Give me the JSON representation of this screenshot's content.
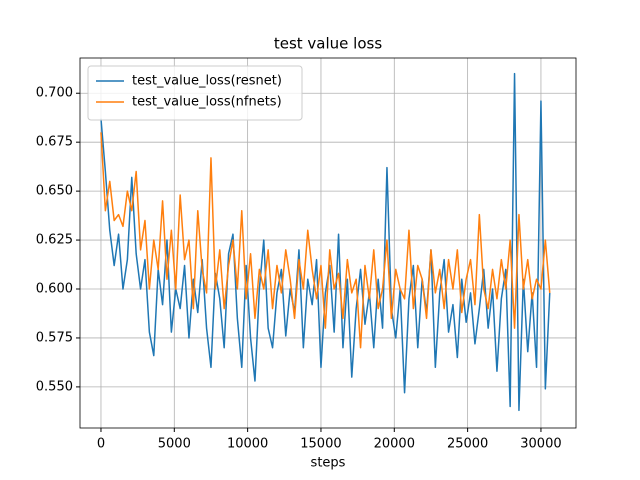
{
  "chart_data": {
    "type": "line",
    "title": "test value loss",
    "x_label": "steps",
    "x": [
      0,
      300,
      600,
      900,
      1200,
      1500,
      1800,
      2100,
      2400,
      2700,
      3000,
      3300,
      3600,
      3900,
      4200,
      4500,
      4800,
      5100,
      5400,
      5700,
      6000,
      6300,
      6600,
      6900,
      7200,
      7500,
      7800,
      8100,
      8400,
      8700,
      9000,
      9300,
      9600,
      9900,
      10200,
      10500,
      10800,
      11100,
      11400,
      11700,
      12000,
      12300,
      12600,
      12900,
      13200,
      13500,
      13800,
      14100,
      14400,
      14700,
      15000,
      15300,
      15600,
      15900,
      16200,
      16500,
      16800,
      17100,
      17400,
      17700,
      18000,
      18300,
      18600,
      18900,
      19200,
      19500,
      19800,
      20100,
      20400,
      20700,
      21000,
      21300,
      21600,
      21900,
      22200,
      22500,
      22800,
      23100,
      23400,
      23700,
      24000,
      24300,
      24600,
      24900,
      25200,
      25500,
      25800,
      26100,
      26400,
      26700,
      27000,
      27300,
      27600,
      27900,
      28200,
      28500,
      28800,
      29100,
      29400,
      29700,
      30000,
      30300,
      30600
    ],
    "series": [
      {
        "name": "test_value_loss(resnet)",
        "color": "#1f77b4",
        "values": [
          0.687,
          0.66,
          0.63,
          0.612,
          0.628,
          0.6,
          0.615,
          0.657,
          0.618,
          0.6,
          0.615,
          0.578,
          0.566,
          0.61,
          0.592,
          0.625,
          0.578,
          0.6,
          0.59,
          0.612,
          0.575,
          0.605,
          0.588,
          0.615,
          0.58,
          0.56,
          0.608,
          0.595,
          0.57,
          0.618,
          0.628,
          0.585,
          0.56,
          0.612,
          0.575,
          0.553,
          0.6,
          0.625,
          0.58,
          0.57,
          0.598,
          0.61,
          0.576,
          0.6,
          0.588,
          0.62,
          0.57,
          0.605,
          0.592,
          0.615,
          0.56,
          0.598,
          0.612,
          0.578,
          0.628,
          0.57,
          0.605,
          0.555,
          0.59,
          0.61,
          0.582,
          0.598,
          0.57,
          0.605,
          0.58,
          0.662,
          0.59,
          0.575,
          0.6,
          0.547,
          0.595,
          0.612,
          0.57,
          0.605,
          0.588,
          0.62,
          0.56,
          0.598,
          0.615,
          0.578,
          0.592,
          0.565,
          0.605,
          0.583,
          0.598,
          0.572,
          0.59,
          0.61,
          0.58,
          0.6,
          0.558,
          0.595,
          0.61,
          0.54,
          0.71,
          0.538,
          0.605,
          0.568,
          0.598,
          0.56,
          0.696,
          0.549,
          0.598
        ]
      },
      {
        "name": "test_value_loss(nfnets)",
        "color": "#ff7f0e",
        "values": [
          0.68,
          0.64,
          0.655,
          0.635,
          0.638,
          0.632,
          0.65,
          0.64,
          0.66,
          0.62,
          0.635,
          0.6,
          0.625,
          0.61,
          0.645,
          0.605,
          0.63,
          0.6,
          0.648,
          0.615,
          0.625,
          0.59,
          0.64,
          0.61,
          0.598,
          0.667,
          0.6,
          0.62,
          0.59,
          0.612,
          0.625,
          0.6,
          0.64,
          0.595,
          0.618,
          0.585,
          0.61,
          0.6,
          0.62,
          0.59,
          0.612,
          0.598,
          0.62,
          0.605,
          0.585,
          0.615,
          0.6,
          0.63,
          0.61,
          0.595,
          0.612,
          0.58,
          0.62,
          0.6,
          0.608,
          0.585,
          0.615,
          0.598,
          0.605,
          0.57,
          0.612,
          0.595,
          0.62,
          0.59,
          0.6,
          0.625,
          0.585,
          0.61,
          0.6,
          0.595,
          0.63,
          0.59,
          0.612,
          0.605,
          0.585,
          0.62,
          0.598,
          0.61,
          0.59,
          0.615,
          0.6,
          0.62,
          0.588,
          0.605,
          0.615,
          0.592,
          0.638,
          0.6,
          0.59,
          0.61,
          0.595,
          0.615,
          0.6,
          0.625,
          0.58,
          0.638,
          0.6,
          0.615,
          0.595,
          0.605,
          0.6,
          0.625,
          0.598
        ]
      }
    ],
    "xlim": [
      -1430,
      32390
    ],
    "xticks": [
      0,
      5000,
      10000,
      15000,
      20000,
      25000,
      30000
    ],
    "ylim": [
      0.529,
      0.718
    ],
    "yticks": [
      {
        "value": 0.55,
        "label": "0.550"
      },
      0.575,
      {
        "value": 0.6,
        "label": "0.600"
      },
      0.625,
      {
        "value": 0.65,
        "label": "0.650"
      },
      0.675,
      {
        "value": 0.7,
        "label": "0.700"
      }
    ],
    "grid": true,
    "legend": "upper left"
  }
}
